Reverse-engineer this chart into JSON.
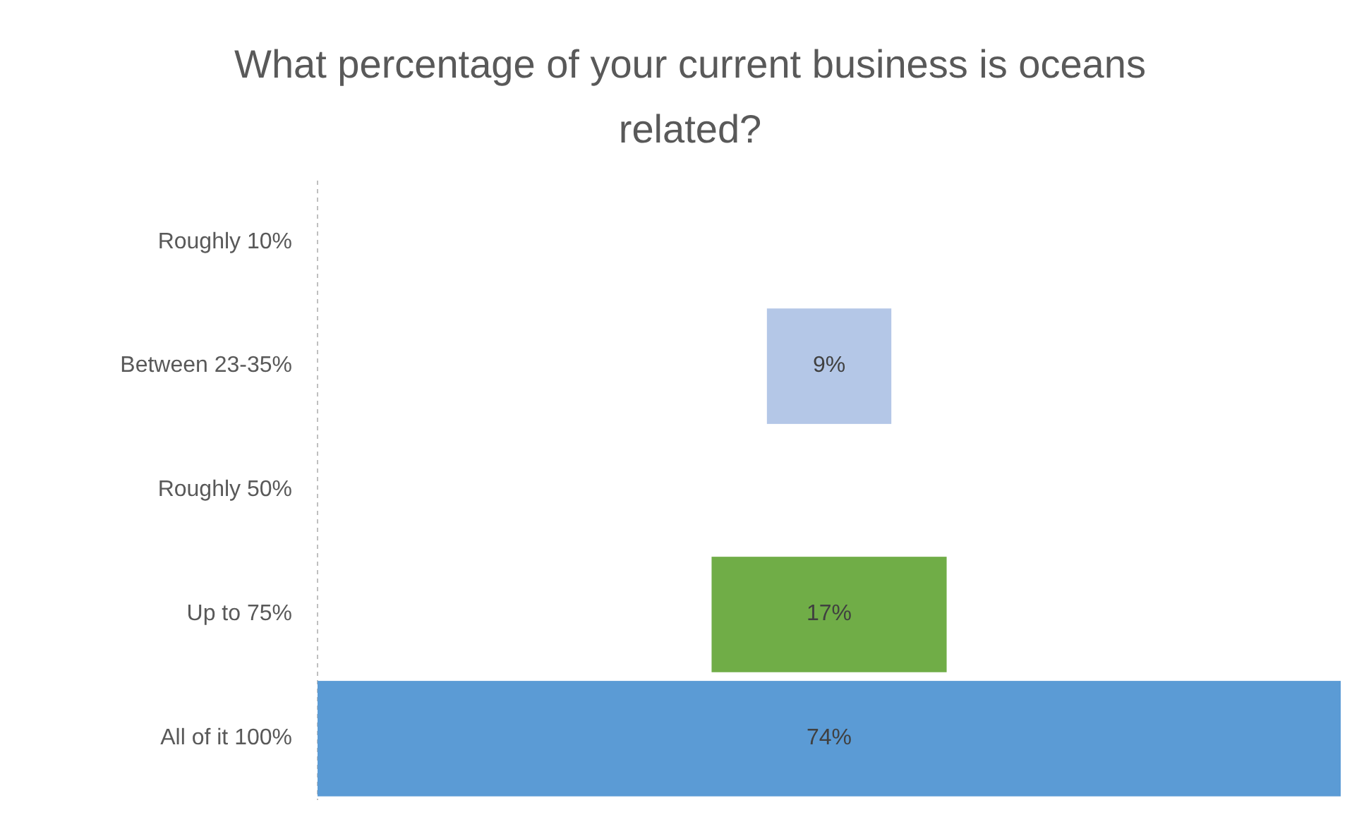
{
  "chart_data": {
    "type": "other",
    "title": "What percentage of your current business is oceans related?",
    "categories": [
      "Roughly 10%",
      "Between 23-35%",
      "Roughly 50%",
      "Up to 75%",
      "All of it 100%"
    ],
    "values": [
      null,
      9,
      null,
      17,
      74
    ],
    "colors": [
      null,
      "#b4c7e7",
      null,
      "#70ad47",
      "#5b9bd5"
    ],
    "value_labels": [
      null,
      "9%",
      null,
      "17%",
      "74%"
    ]
  }
}
